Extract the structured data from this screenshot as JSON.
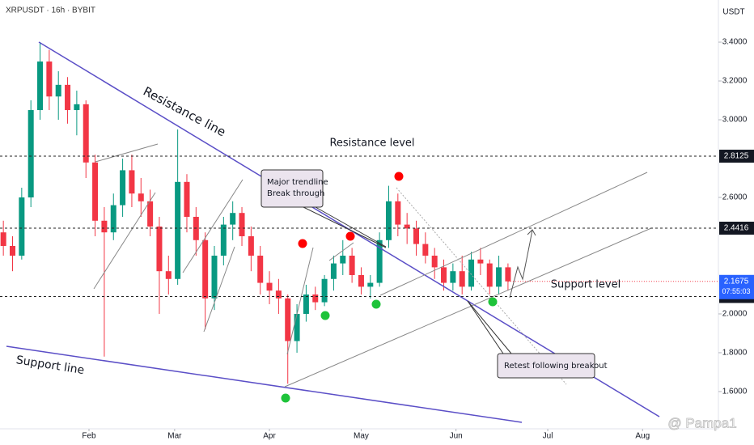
{
  "header": {
    "symbol": "XRPUSDT · 16h · BYBIT",
    "currency": "USDT"
  },
  "watermark": "@ Pampa1",
  "chart_data": {
    "type": "candlestick",
    "x": [
      4,
      7,
      10,
      13,
      16,
      19,
      22,
      25,
      28,
      31,
      34,
      37,
      40,
      43,
      46,
      49,
      52,
      55,
      58,
      61,
      64,
      67,
      70,
      73,
      76,
      79,
      82,
      85,
      88,
      91,
      94,
      97,
      100,
      103,
      106,
      109,
      112,
      115,
      118,
      121,
      124,
      127,
      130,
      133,
      136,
      139,
      142,
      145,
      148,
      151,
      154,
      157,
      160,
      163,
      166,
      169
    ],
    "open": [
      2.42,
      2.35,
      2.3,
      2.6,
      3.05,
      3.3,
      3.12,
      3.18,
      3.05,
      3.08,
      2.78,
      2.48,
      2.42,
      2.56,
      2.74,
      2.62,
      2.58,
      2.45,
      2.22,
      2.18,
      2.68,
      2.5,
      2.38,
      2.08,
      2.3,
      2.46,
      2.52,
      2.4,
      2.3,
      2.16,
      2.12,
      2.08,
      1.86,
      2.0,
      2.1,
      2.06,
      2.18,
      2.26,
      2.3,
      2.2,
      2.14,
      2.16,
      2.38,
      2.58,
      2.46,
      2.44,
      2.36,
      2.3,
      2.24,
      2.16,
      2.22,
      2.14,
      2.28,
      2.26,
      2.14,
      2.24
    ],
    "high": [
      2.48,
      2.4,
      2.65,
      3.1,
      3.4,
      3.36,
      3.25,
      3.22,
      3.15,
      3.1,
      2.82,
      2.55,
      2.62,
      2.8,
      2.82,
      2.7,
      2.64,
      2.5,
      2.3,
      2.95,
      2.72,
      2.55,
      2.42,
      2.35,
      2.5,
      2.58,
      2.55,
      2.45,
      2.35,
      2.22,
      2.18,
      2.1,
      2.05,
      2.15,
      2.14,
      2.2,
      2.3,
      2.38,
      2.34,
      2.24,
      2.2,
      2.42,
      2.66,
      2.62,
      2.52,
      2.48,
      2.42,
      2.34,
      2.28,
      2.26,
      2.3,
      2.32,
      2.34,
      2.28,
      2.3,
      2.26
    ],
    "low": [
      2.3,
      2.22,
      2.28,
      2.55,
      3.0,
      3.05,
      3.0,
      2.98,
      2.92,
      2.7,
      2.4,
      1.78,
      2.38,
      2.5,
      2.55,
      2.5,
      2.4,
      2.0,
      2.1,
      2.15,
      2.42,
      2.3,
      1.92,
      2.02,
      2.25,
      2.38,
      2.35,
      2.22,
      2.1,
      2.05,
      2.0,
      1.64,
      1.8,
      1.96,
      2.02,
      2.04,
      2.12,
      2.2,
      2.16,
      2.1,
      2.08,
      2.14,
      2.34,
      2.4,
      2.36,
      2.3,
      2.26,
      2.18,
      2.12,
      2.12,
      2.1,
      2.12,
      2.2,
      2.1,
      2.1,
      2.12
    ],
    "close": [
      2.35,
      2.3,
      2.6,
      3.05,
      3.3,
      3.12,
      3.18,
      3.05,
      3.08,
      2.78,
      2.48,
      2.42,
      2.56,
      2.74,
      2.62,
      2.58,
      2.45,
      2.22,
      2.18,
      2.68,
      2.5,
      2.38,
      2.08,
      2.3,
      2.46,
      2.52,
      2.4,
      2.3,
      2.16,
      2.12,
      2.08,
      1.86,
      2.0,
      2.1,
      2.06,
      2.18,
      2.26,
      2.3,
      2.2,
      2.14,
      2.16,
      2.38,
      2.58,
      2.46,
      2.44,
      2.36,
      2.3,
      2.24,
      2.16,
      2.22,
      2.14,
      2.28,
      2.26,
      2.14,
      2.24,
      2.1675
    ],
    "up_color": "#089981",
    "down_color": "#f23645",
    "xlim": [
      2.9,
      237.8
    ],
    "xticks": [
      {
        "value": 32,
        "label": "Feb"
      },
      {
        "value": 60,
        "label": "Mar"
      },
      {
        "value": 91,
        "label": "Apr"
      },
      {
        "value": 121,
        "label": "May"
      },
      {
        "value": 152,
        "label": "Jun"
      },
      {
        "value": 182,
        "label": "Jul"
      },
      {
        "value": 213,
        "label": "Aug"
      }
    ],
    "ylim": [
      1.408,
      3.617
    ],
    "yticks": [
      {
        "value": 3.4,
        "label": "3.4000"
      },
      {
        "value": 3.2,
        "label": "3.2000"
      },
      {
        "value": 3.0,
        "label": "3.0000"
      },
      {
        "value": 2.6,
        "label": "2.6000"
      },
      {
        "value": 2.0,
        "label": "2.0000"
      },
      {
        "value": 1.8,
        "label": "1.8000"
      },
      {
        "value": 1.6,
        "label": "1.6000"
      }
    ],
    "levels": [
      2.8125,
      2.4416,
      2.0897
    ],
    "last_price": 2.1675,
    "countdown": "07:55:03",
    "annotations": {
      "resistance_line": "Resistance line",
      "support_line": "Support line",
      "resistance_level": "Resistance level",
      "support_level": "Support level",
      "breakout_1": "Major trendline",
      "breakout_2": "Break through",
      "retest": "Retest following breakout"
    }
  }
}
